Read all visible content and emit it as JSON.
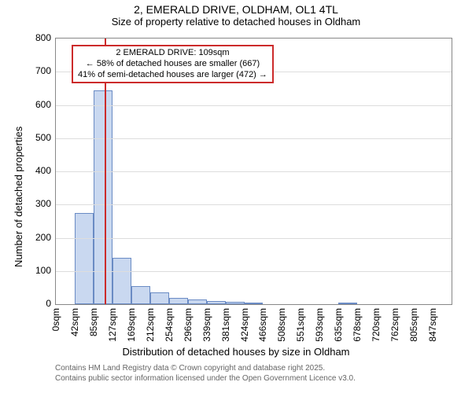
{
  "title": {
    "line1": "2, EMERALD DRIVE, OLDHAM, OL1 4TL",
    "line2": "Size of property relative to detached houses in Oldham"
  },
  "chart": {
    "type": "histogram",
    "background_color": "#ffffff",
    "grid_color": "#dddddd",
    "axis_color": "#888888",
    "bar_fill": "#c9d8f0",
    "bar_stroke": "#6a8bc4",
    "marker_color": "#cc2b2b",
    "ylim": [
      0,
      800
    ],
    "ytick_step": 100,
    "xlabel": "Distribution of detached houses by size in Oldham",
    "ylabel": "Number of detached properties",
    "x_categories": [
      "0sqm",
      "42sqm",
      "85sqm",
      "127sqm",
      "169sqm",
      "212sqm",
      "254sqm",
      "296sqm",
      "339sqm",
      "381sqm",
      "424sqm",
      "466sqm",
      "508sqm",
      "551sqm",
      "593sqm",
      "635sqm",
      "678sqm",
      "720sqm",
      "762sqm",
      "805sqm",
      "847sqm"
    ],
    "values": [
      0,
      275,
      645,
      140,
      55,
      35,
      20,
      15,
      10,
      7,
      5,
      0,
      0,
      0,
      0,
      3,
      0,
      0,
      0,
      0,
      0
    ],
    "marker_bin_index": 2,
    "marker_fraction_in_bin": 0.57,
    "annotation": {
      "line1": "2 EMERALD DRIVE: 109sqm",
      "line2": "← 58% of detached houses are smaller (667)",
      "line3": "41% of semi-detached houses are larger (472) →"
    }
  },
  "attribution": {
    "line1": "Contains HM Land Registry data © Crown copyright and database right 2025.",
    "line2": "Contains public sector information licensed under the Open Government Licence v3.0."
  },
  "fonts": {
    "title_fontsize": 14,
    "subtitle_fontsize": 13,
    "axis_label_fontsize": 13,
    "tick_fontsize": 12,
    "annotation_fontsize": 11,
    "attribution_fontsize": 10
  }
}
